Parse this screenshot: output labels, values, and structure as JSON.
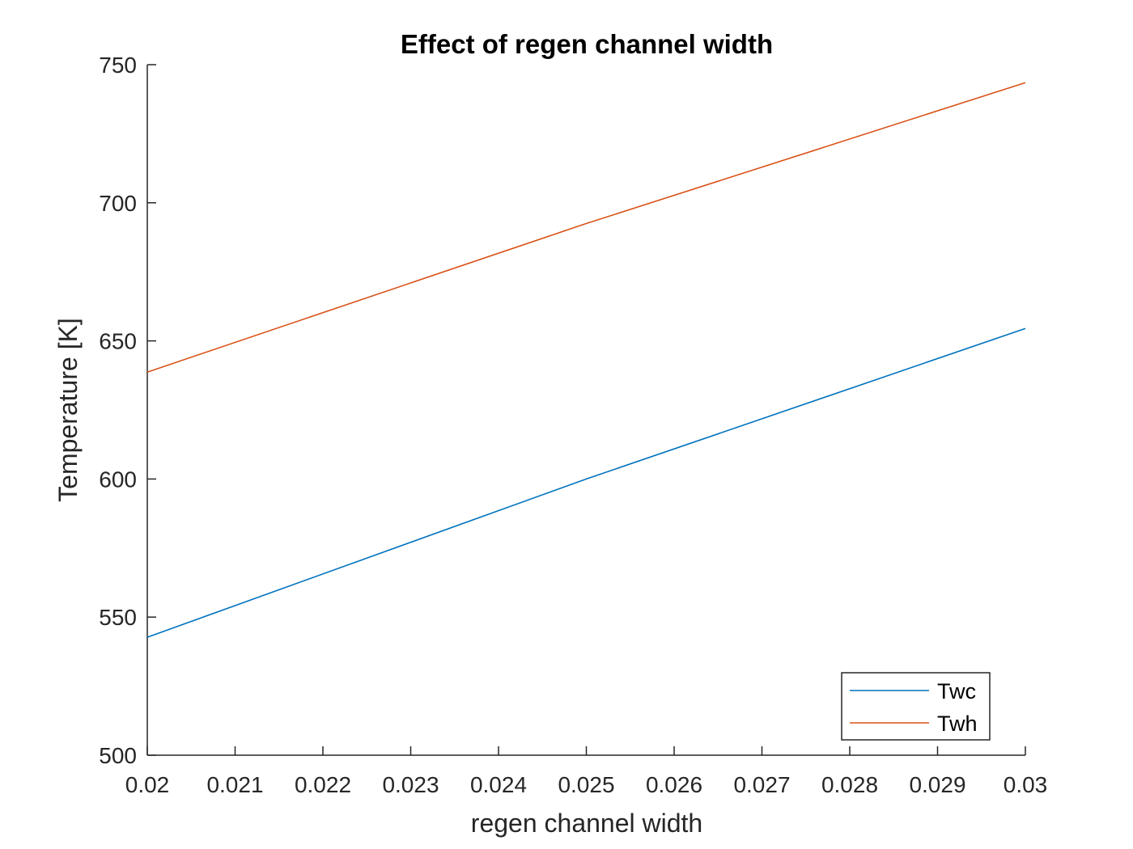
{
  "chart_data": {
    "type": "line",
    "title": "Effect of regen channel width",
    "xlabel": "regen channel width",
    "ylabel": "Temperature [K]",
    "xlim": [
      0.02,
      0.03
    ],
    "ylim": [
      500,
      750
    ],
    "xticks": [
      0.02,
      0.021,
      0.022,
      0.023,
      0.024,
      0.025,
      0.026,
      0.027,
      0.028,
      0.029,
      0.03
    ],
    "xtick_labels": [
      "0.02",
      "0.021",
      "0.022",
      "0.023",
      "0.024",
      "0.025",
      "0.026",
      "0.027",
      "0.028",
      "0.029",
      "0.03"
    ],
    "yticks": [
      500,
      550,
      600,
      650,
      700,
      750
    ],
    "ytick_labels": [
      "500",
      "550",
      "600",
      "650",
      "700",
      "750"
    ],
    "grid": false,
    "legend_position": "bottom-right",
    "series": [
      {
        "name": "Twc",
        "color": "#0072BD",
        "x": [
          0.02,
          0.025,
          0.03
        ],
        "y": [
          542.7,
          600.0,
          654.5
        ]
      },
      {
        "name": "Twh",
        "color": "#D95319",
        "x": [
          0.02,
          0.025,
          0.03
        ],
        "y": [
          638.7,
          692.5,
          743.5
        ]
      }
    ]
  }
}
